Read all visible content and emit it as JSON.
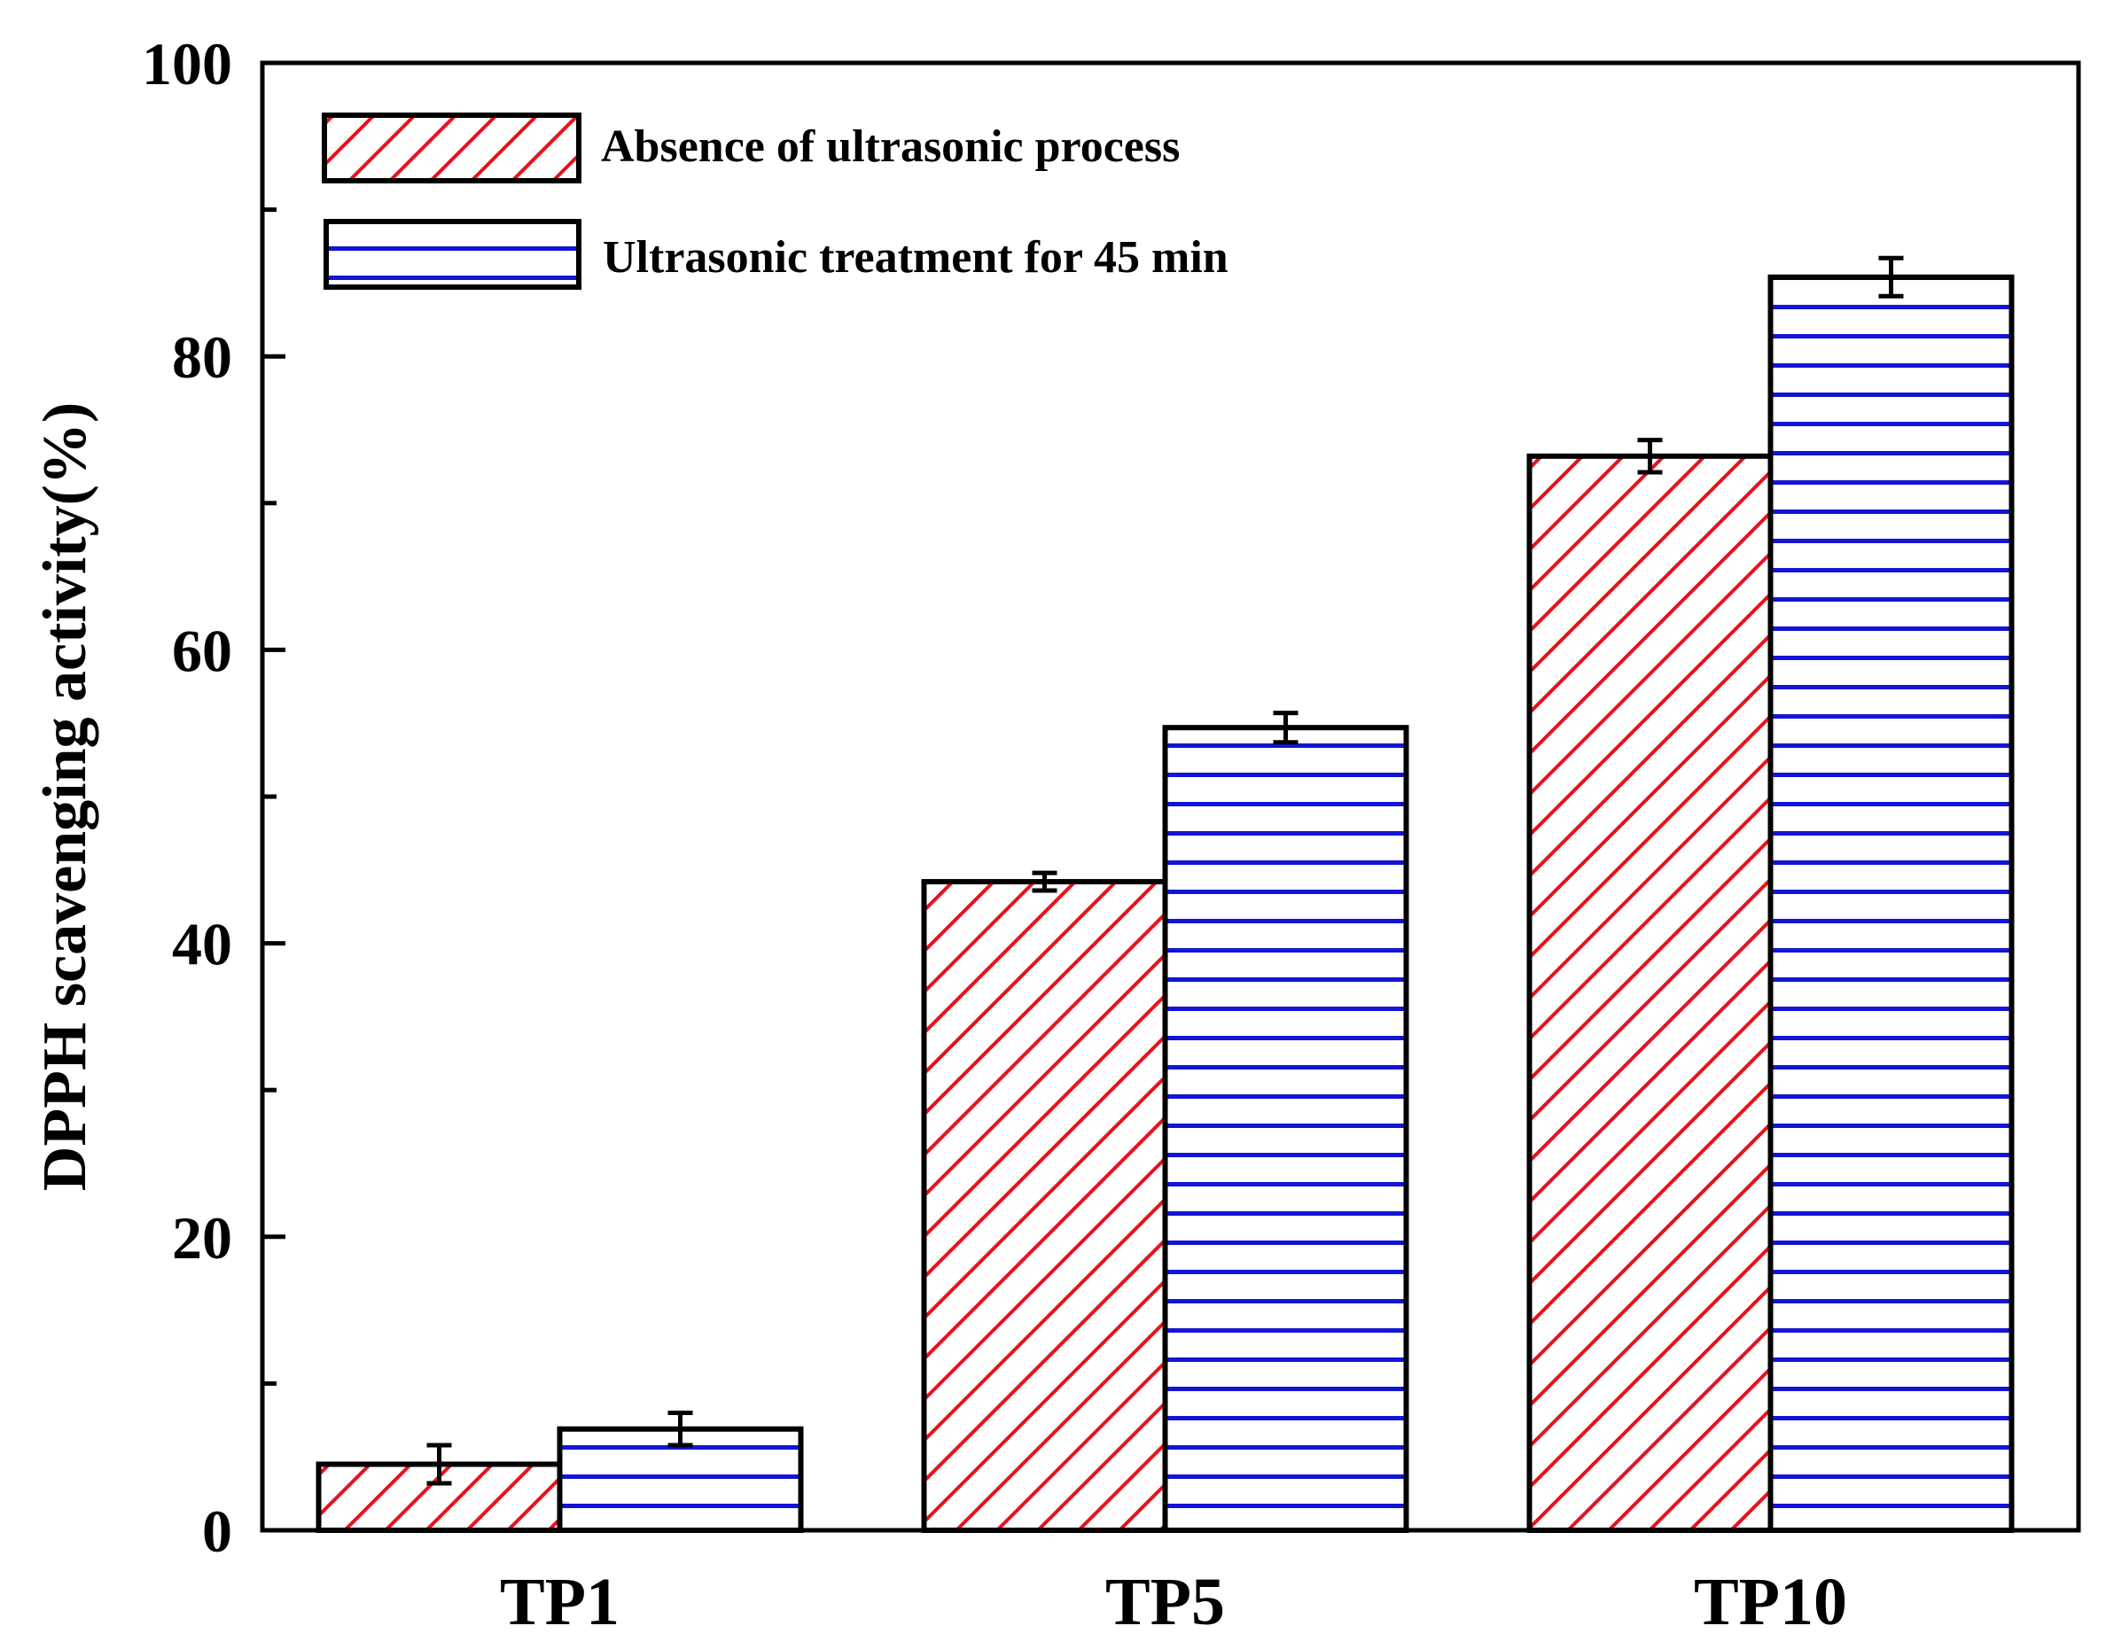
{
  "chart_data": {
    "type": "bar",
    "title": "",
    "xlabel": "",
    "ylabel": "DPPH scavenging activity(%)",
    "ylim": [
      0,
      100
    ],
    "yticks": [
      "0",
      "20",
      "40",
      "60",
      "80",
      "100"
    ],
    "categories": [
      "TP1",
      "TP5",
      "TP10"
    ],
    "series": [
      {
        "name": "Absence of ultrasonic process",
        "values": [
          4.5,
          44.2,
          73.2
        ],
        "errors": [
          1.3,
          0.6,
          1.1
        ],
        "pattern": "diagonal-hatch",
        "color": "#e8121c"
      },
      {
        "name": "Ultrasonic treatment for 45 min",
        "values": [
          6.9,
          54.7,
          85.4
        ],
        "errors": [
          1.1,
          1.0,
          1.3
        ],
        "pattern": "horizontal-lines",
        "color": "#1414d6"
      }
    ],
    "legend_position": "top-left",
    "grid": false
  }
}
